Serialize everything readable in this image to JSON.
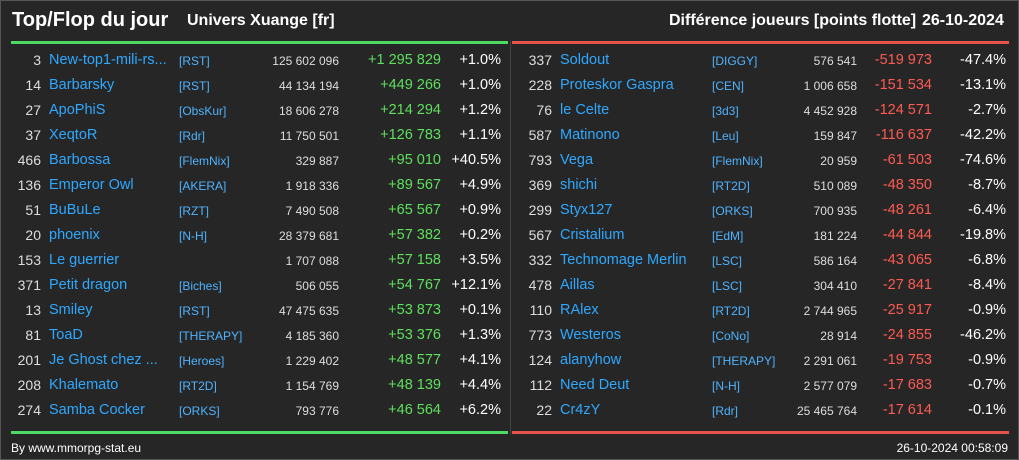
{
  "header": {
    "title": "Top/Flop du jour",
    "universe": "Univers Xuange [fr]",
    "metric": "Différence joueurs [points flotte]",
    "date": "26-10-2024"
  },
  "colors": {
    "top": "#4cd964",
    "flop": "#e5534b",
    "name": "#2fa8ff"
  },
  "top": [
    {
      "rank": "3",
      "name": "New-top1-mili-rs...",
      "guild": "[RST]",
      "points": "125 602 096",
      "delta": "+1 295 829",
      "pct": "+1.0%"
    },
    {
      "rank": "14",
      "name": "Barbarsky",
      "guild": "[RST]",
      "points": "44 134 194",
      "delta": "+449 266",
      "pct": "+1.0%"
    },
    {
      "rank": "27",
      "name": "ApoPhiS",
      "guild": "[ObsKur]",
      "points": "18 606 278",
      "delta": "+214 294",
      "pct": "+1.2%"
    },
    {
      "rank": "37",
      "name": "XeqtoR",
      "guild": "[Rdr]",
      "points": "11 750 501",
      "delta": "+126 783",
      "pct": "+1.1%"
    },
    {
      "rank": "466",
      "name": "Barbossa",
      "guild": "[FlemNix]",
      "points": "329 887",
      "delta": "+95 010",
      "pct": "+40.5%"
    },
    {
      "rank": "136",
      "name": "Emperor Owl",
      "guild": "[AKERA]",
      "points": "1 918 336",
      "delta": "+89 567",
      "pct": "+4.9%"
    },
    {
      "rank": "51",
      "name": "BuBuLe",
      "guild": "[RZT]",
      "points": "7 490 508",
      "delta": "+65 567",
      "pct": "+0.9%"
    },
    {
      "rank": "20",
      "name": "phoenix",
      "guild": "[N-H]",
      "points": "28 379 681",
      "delta": "+57 382",
      "pct": "+0.2%"
    },
    {
      "rank": "153",
      "name": "Le guerrier",
      "guild": "",
      "points": "1 707 088",
      "delta": "+57 158",
      "pct": "+3.5%"
    },
    {
      "rank": "371",
      "name": "Petit dragon",
      "guild": "[Biches]",
      "points": "506 055",
      "delta": "+54 767",
      "pct": "+12.1%"
    },
    {
      "rank": "13",
      "name": "Smiley",
      "guild": "[RST]",
      "points": "47 475 635",
      "delta": "+53 873",
      "pct": "+0.1%"
    },
    {
      "rank": "81",
      "name": "ToaD",
      "guild": "[THERAPY]",
      "points": "4 185 360",
      "delta": "+53 376",
      "pct": "+1.3%"
    },
    {
      "rank": "201",
      "name": "Je Ghost chez ...",
      "guild": "[Heroes]",
      "points": "1 229 402",
      "delta": "+48 577",
      "pct": "+4.1%"
    },
    {
      "rank": "208",
      "name": "Khalemato",
      "guild": "[RT2D]",
      "points": "1 154 769",
      "delta": "+48 139",
      "pct": "+4.4%"
    },
    {
      "rank": "274",
      "name": "Samba Cocker",
      "guild": "[ORKS]",
      "points": "793 776",
      "delta": "+46 564",
      "pct": "+6.2%"
    }
  ],
  "flop": [
    {
      "rank": "337",
      "name": "Soldout",
      "guild": "[DIGGY]",
      "points": "576 541",
      "delta": "-519 973",
      "pct": "-47.4%"
    },
    {
      "rank": "228",
      "name": "Proteskor Gaspra",
      "guild": "[CEN]",
      "points": "1 006 658",
      "delta": "-151 534",
      "pct": "-13.1%"
    },
    {
      "rank": "76",
      "name": "le Celte",
      "guild": "[3d3]",
      "points": "4 452 928",
      "delta": "-124 571",
      "pct": "-2.7%"
    },
    {
      "rank": "587",
      "name": "Matinono",
      "guild": "[Leu]",
      "points": "159 847",
      "delta": "-116 637",
      "pct": "-42.2%"
    },
    {
      "rank": "793",
      "name": "Vega",
      "guild": "[FlemNix]",
      "points": "20 959",
      "delta": "-61 503",
      "pct": "-74.6%"
    },
    {
      "rank": "369",
      "name": "shichi",
      "guild": "[RT2D]",
      "points": "510 089",
      "delta": "-48 350",
      "pct": "-8.7%"
    },
    {
      "rank": "299",
      "name": "Styx127",
      "guild": "[ORKS]",
      "points": "700 935",
      "delta": "-48 261",
      "pct": "-6.4%"
    },
    {
      "rank": "567",
      "name": "Cristalium",
      "guild": "[EdM]",
      "points": "181 224",
      "delta": "-44 844",
      "pct": "-19.8%"
    },
    {
      "rank": "332",
      "name": "Technomage Merlin",
      "guild": "[LSC]",
      "points": "586 164",
      "delta": "-43 065",
      "pct": "-6.8%"
    },
    {
      "rank": "478",
      "name": "Aillas",
      "guild": "[LSC]",
      "points": "304 410",
      "delta": "-27 841",
      "pct": "-8.4%"
    },
    {
      "rank": "110",
      "name": "RAlex",
      "guild": "[RT2D]",
      "points": "2 744 965",
      "delta": "-25 917",
      "pct": "-0.9%"
    },
    {
      "rank": "773",
      "name": "Westeros",
      "guild": "[CoNo]",
      "points": "28 914",
      "delta": "-24 855",
      "pct": "-46.2%"
    },
    {
      "rank": "124",
      "name": "alanyhow",
      "guild": "[THERAPY]",
      "points": "2 291 061",
      "delta": "-19 753",
      "pct": "-0.9%"
    },
    {
      "rank": "112",
      "name": "Need Deut",
      "guild": "[N-H]",
      "points": "2 577 079",
      "delta": "-17 683",
      "pct": "-0.7%"
    },
    {
      "rank": "22",
      "name": "Cr4zY",
      "guild": "[Rdr]",
      "points": "25 465 764",
      "delta": "-17 614",
      "pct": "-0.1%"
    }
  ],
  "footer": {
    "source": "By www.mmorpg-stat.eu",
    "timestamp": "26-10-2024 00:58:09"
  }
}
